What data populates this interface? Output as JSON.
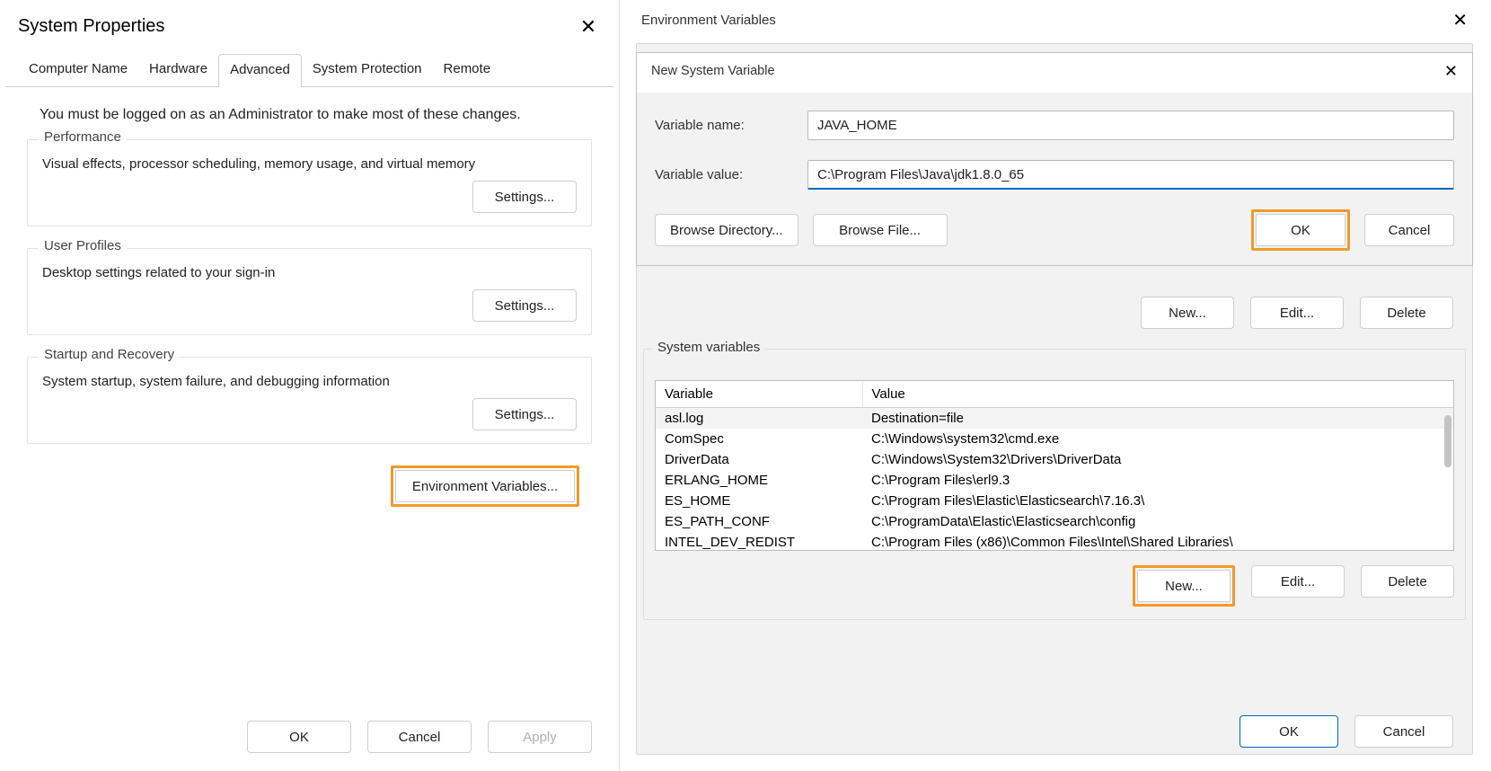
{
  "sysprops": {
    "title": "System Properties",
    "tabs": [
      "Computer Name",
      "Hardware",
      "Advanced",
      "System Protection",
      "Remote"
    ],
    "active_tab_index": 2,
    "note": "You must be logged on as an Administrator to make most of these changes.",
    "groups": {
      "performance": {
        "title": "Performance",
        "desc": "Visual effects, processor scheduling, memory usage, and virtual memory",
        "button": "Settings..."
      },
      "profiles": {
        "title": "User Profiles",
        "desc": "Desktop settings related to your sign-in",
        "button": "Settings..."
      },
      "startup": {
        "title": "Startup and Recovery",
        "desc": "System startup, system failure, and debugging information",
        "button": "Settings..."
      }
    },
    "envvars_button": "Environment Variables...",
    "footer": {
      "ok": "OK",
      "cancel": "Cancel",
      "apply": "Apply"
    }
  },
  "envvars": {
    "title": "Environment Variables",
    "new_dialog": {
      "title": "New System Variable",
      "name_label": "Variable name:",
      "name_value": "JAVA_HOME",
      "value_label": "Variable value:",
      "value_value": "C:\\Program Files\\Java\\jdk1.8.0_65",
      "browse_dir": "Browse Directory...",
      "browse_file": "Browse File...",
      "ok": "OK",
      "cancel": "Cancel"
    },
    "mid_buttons": {
      "new": "New...",
      "edit": "Edit...",
      "delete": "Delete"
    },
    "sysvars": {
      "legend": "System variables",
      "columns": [
        "Variable",
        "Value"
      ],
      "rows": [
        [
          "asl.log",
          "Destination=file"
        ],
        [
          "ComSpec",
          "C:\\Windows\\system32\\cmd.exe"
        ],
        [
          "DriverData",
          "C:\\Windows\\System32\\Drivers\\DriverData"
        ],
        [
          "ERLANG_HOME",
          "C:\\Program Files\\erl9.3"
        ],
        [
          "ES_HOME",
          "C:\\Program Files\\Elastic\\Elasticsearch\\7.16.3\\"
        ],
        [
          "ES_PATH_CONF",
          "C:\\ProgramData\\Elastic\\Elasticsearch\\config"
        ],
        [
          "INTEL_DEV_REDIST",
          "C:\\Program Files (x86)\\Common Files\\Intel\\Shared Libraries\\"
        ]
      ],
      "buttons": {
        "new": "New...",
        "edit": "Edit...",
        "delete": "Delete"
      }
    },
    "footer": {
      "ok": "OK",
      "cancel": "Cancel"
    }
  },
  "style": {
    "highlight_color": "#f19a2a",
    "primary_color": "#0067c0",
    "bg_gray": "#f2f2f2",
    "border_gray": "#cfcfcf"
  }
}
